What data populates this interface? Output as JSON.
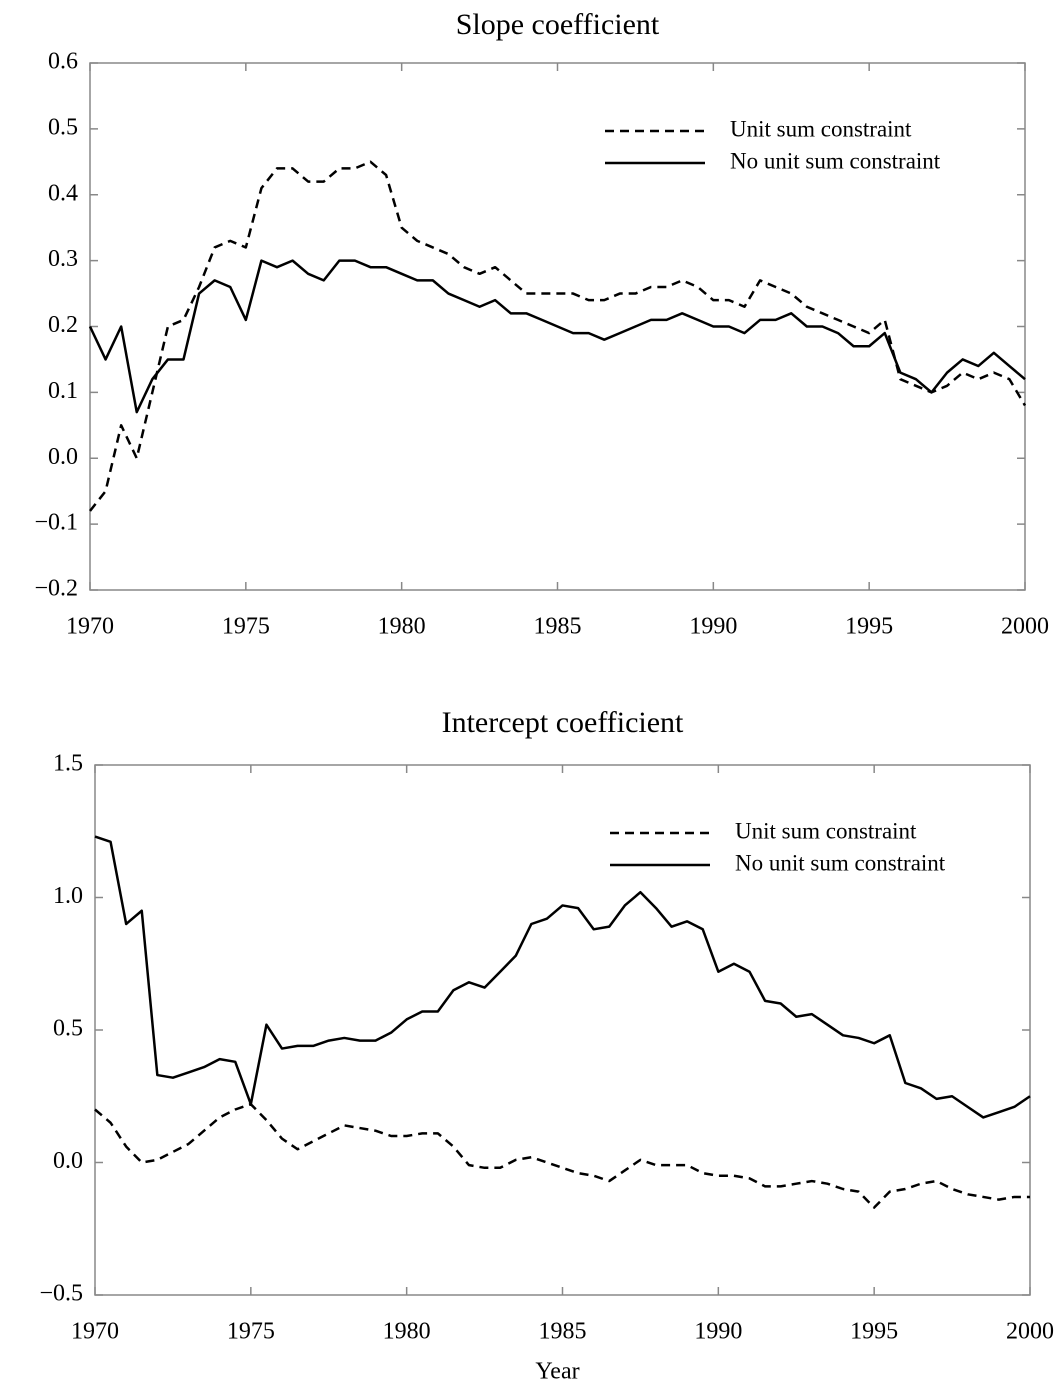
{
  "chart_data": [
    {
      "type": "line",
      "title": "Slope coefficient",
      "legend": "upper right",
      "xlim": [
        1970,
        2000
      ],
      "ylim": [
        -0.2,
        0.6
      ],
      "xticks": [
        1970,
        1975,
        1980,
        1985,
        1990,
        1995,
        2000
      ],
      "yticks": [
        {
          "value": -0.2,
          "label": "−0.2"
        },
        {
          "value": -0.1,
          "label": "−0.1"
        },
        {
          "value": 0,
          "label": "0.0"
        },
        0.1,
        0.2,
        0.3,
        0.4,
        0.5,
        0.6
      ],
      "x": [
        1970,
        1970.5,
        1971,
        1971.5,
        1972,
        1972.5,
        1973,
        1973.5,
        1974,
        1974.5,
        1975,
        1975.5,
        1976,
        1976.5,
        1977,
        1977.5,
        1978,
        1978.5,
        1979,
        1979.5,
        1980,
        1980.5,
        1981,
        1981.5,
        1982,
        1982.5,
        1983,
        1983.5,
        1984,
        1984.5,
        1985,
        1985.5,
        1986,
        1986.5,
        1987,
        1987.5,
        1988,
        1988.5,
        1989,
        1989.5,
        1990,
        1990.5,
        1991,
        1991.5,
        1992,
        1992.5,
        1993,
        1993.5,
        1994,
        1994.5,
        1995,
        1995.5,
        1996,
        1996.5,
        1997,
        1997.5,
        1998,
        1998.5,
        1999,
        1999.5,
        2000
      ],
      "series": [
        {
          "name": "Unit sum constraint",
          "color": "#000000",
          "style": "dashed",
          "values": [
            -0.08,
            -0.05,
            0.05,
            0.0,
            0.1,
            0.2,
            0.21,
            0.26,
            0.32,
            0.33,
            0.32,
            0.41,
            0.44,
            0.44,
            0.42,
            0.42,
            0.44,
            0.44,
            0.45,
            0.43,
            0.35,
            0.33,
            0.32,
            0.31,
            0.29,
            0.28,
            0.29,
            0.27,
            0.25,
            0.25,
            0.25,
            0.25,
            0.24,
            0.24,
            0.25,
            0.25,
            0.26,
            0.26,
            0.27,
            0.26,
            0.24,
            0.24,
            0.23,
            0.27,
            0.26,
            0.25,
            0.23,
            0.22,
            0.21,
            0.2,
            0.19,
            0.21,
            0.12,
            0.11,
            0.1,
            0.11,
            0.13,
            0.12,
            0.13,
            0.12,
            0.08
          ]
        },
        {
          "name": "No unit sum constraint",
          "color": "#000000",
          "style": "solid",
          "values": [
            0.2,
            0.15,
            0.2,
            0.07,
            0.12,
            0.15,
            0.15,
            0.25,
            0.27,
            0.26,
            0.21,
            0.3,
            0.29,
            0.3,
            0.28,
            0.27,
            0.3,
            0.3,
            0.29,
            0.29,
            0.28,
            0.27,
            0.27,
            0.25,
            0.24,
            0.23,
            0.24,
            0.22,
            0.22,
            0.21,
            0.2,
            0.19,
            0.19,
            0.18,
            0.19,
            0.2,
            0.21,
            0.21,
            0.22,
            0.21,
            0.2,
            0.2,
            0.19,
            0.21,
            0.21,
            0.22,
            0.2,
            0.2,
            0.19,
            0.17,
            0.17,
            0.19,
            0.13,
            0.12,
            0.1,
            0.13,
            0.15,
            0.14,
            0.16,
            0.14,
            0.12
          ]
        }
      ]
    },
    {
      "type": "line",
      "title": "Intercept coefficient",
      "x_label": "Year",
      "legend": "upper right",
      "xlim": [
        1970,
        2000
      ],
      "ylim": [
        -0.5,
        1.5
      ],
      "xticks": [
        1970,
        1975,
        1980,
        1985,
        1990,
        1995,
        2000
      ],
      "yticks": [
        {
          "value": -0.5,
          "label": "−0.5"
        },
        {
          "value": 0,
          "label": "0.0"
        },
        0.5,
        {
          "value": 1,
          "label": "1.0"
        },
        1.5
      ],
      "x": [
        1970,
        1970.5,
        1971,
        1971.5,
        1972,
        1972.5,
        1973,
        1973.5,
        1974,
        1974.5,
        1975,
        1975.5,
        1976,
        1976.5,
        1977,
        1977.5,
        1978,
        1978.5,
        1979,
        1979.5,
        1980,
        1980.5,
        1981,
        1981.5,
        1982,
        1982.5,
        1983,
        1983.5,
        1984,
        1984.5,
        1985,
        1985.5,
        1986,
        1986.5,
        1987,
        1987.5,
        1988,
        1988.5,
        1989,
        1989.5,
        1990,
        1990.5,
        1991,
        1991.5,
        1992,
        1992.5,
        1993,
        1993.5,
        1994,
        1994.5,
        1995,
        1995.5,
        1996,
        1996.5,
        1997,
        1997.5,
        1998,
        1998.5,
        1999,
        1999.5,
        2000
      ],
      "series": [
        {
          "name": "Unit sum constraint",
          "color": "#000000",
          "style": "dashed",
          "values": [
            0.2,
            0.15,
            0.06,
            0.0,
            0.01,
            0.04,
            0.07,
            0.12,
            0.17,
            0.2,
            0.22,
            0.16,
            0.09,
            0.05,
            0.08,
            0.11,
            0.14,
            0.13,
            0.12,
            0.1,
            0.1,
            0.11,
            0.11,
            0.06,
            -0.01,
            -0.02,
            -0.02,
            0.01,
            0.02,
            0.0,
            -0.02,
            -0.04,
            -0.05,
            -0.07,
            -0.03,
            0.01,
            -0.01,
            -0.01,
            -0.01,
            -0.04,
            -0.05,
            -0.05,
            -0.06,
            -0.09,
            -0.09,
            -0.08,
            -0.07,
            -0.08,
            -0.1,
            -0.11,
            -0.17,
            -0.11,
            -0.1,
            -0.08,
            -0.07,
            -0.1,
            -0.12,
            -0.13,
            -0.14,
            -0.13,
            -0.13
          ]
        },
        {
          "name": "No unit sum constraint",
          "color": "#000000",
          "style": "solid",
          "values": [
            1.23,
            1.21,
            0.9,
            0.95,
            0.33,
            0.32,
            0.34,
            0.36,
            0.39,
            0.38,
            0.22,
            0.52,
            0.43,
            0.44,
            0.44,
            0.46,
            0.47,
            0.46,
            0.46,
            0.49,
            0.54,
            0.57,
            0.57,
            0.65,
            0.68,
            0.66,
            0.72,
            0.78,
            0.9,
            0.92,
            0.97,
            0.96,
            0.88,
            0.89,
            0.97,
            1.02,
            0.96,
            0.89,
            0.91,
            0.88,
            0.72,
            0.75,
            0.72,
            0.61,
            0.6,
            0.55,
            0.56,
            0.52,
            0.48,
            0.47,
            0.45,
            0.48,
            0.3,
            0.28,
            0.24,
            0.25,
            0.21,
            0.17,
            0.19,
            0.21,
            0.25
          ]
        }
      ]
    }
  ]
}
